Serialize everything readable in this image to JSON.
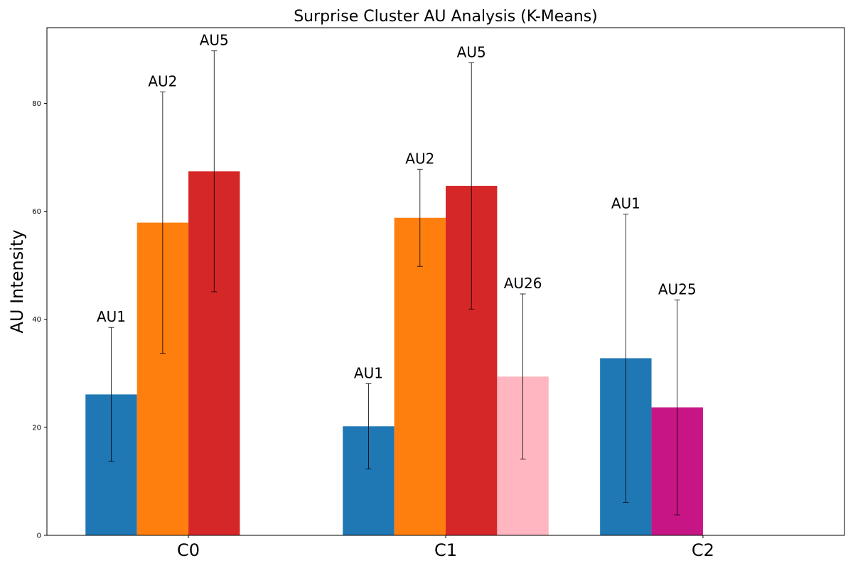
{
  "chart_data": {
    "type": "bar",
    "title": "Surprise Cluster AU Analysis (K-Means)",
    "xlabel": "",
    "ylabel": "AU Intensity",
    "ylim": [
      0,
      94
    ],
    "yticks": [
      0,
      20,
      40,
      60,
      80
    ],
    "categories": [
      "C0",
      "C1",
      "C2"
    ],
    "grid": false,
    "legend": "none",
    "groups": [
      {
        "category": "C0",
        "bars": [
          {
            "au": "AU1",
            "value": 26.1,
            "error": 12.4,
            "color": "#1f77b4",
            "labeled": true
          },
          {
            "au": "AU2",
            "value": 57.9,
            "error": 24.2,
            "color": "#ff7f0e",
            "labeled": true
          },
          {
            "au": "AU5",
            "value": 67.4,
            "error": 22.3,
            "color": "#d62728",
            "labeled": true
          }
        ]
      },
      {
        "category": "C1",
        "bars": [
          {
            "au": "AU1",
            "value": 20.2,
            "error": 7.9,
            "color": "#1f77b4",
            "labeled": true
          },
          {
            "au": "AU2",
            "value": 58.8,
            "error": 9.0,
            "color": "#ff7f0e",
            "labeled": true
          },
          {
            "au": "AU5",
            "value": 64.7,
            "error": 22.8,
            "color": "#d62728",
            "labeled": true
          },
          {
            "au": "AU26",
            "value": 29.4,
            "error": 15.3,
            "color": "#ffb6c1",
            "labeled": true
          }
        ]
      },
      {
        "category": "C2",
        "bars": [
          {
            "au": "AU1",
            "value": 32.8,
            "error": 26.7,
            "color": "#1f77b4",
            "labeled": true
          },
          {
            "au": "AU25",
            "value": 23.7,
            "error": 19.9,
            "color": "#c71585",
            "labeled": true
          }
        ]
      }
    ]
  }
}
